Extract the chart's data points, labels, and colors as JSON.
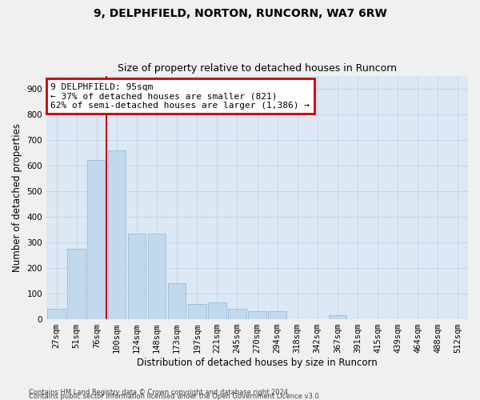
{
  "title_line1": "9, DELPHFIELD, NORTON, RUNCORN, WA7 6RW",
  "title_line2": "Size of property relative to detached houses in Runcorn",
  "xlabel": "Distribution of detached houses by size in Runcorn",
  "ylabel": "Number of detached properties",
  "footer_line1": "Contains HM Land Registry data © Crown copyright and database right 2024.",
  "footer_line2": "Contains public sector information licensed under the Open Government Licence v3.0.",
  "categories": [
    "27sqm",
    "51sqm",
    "76sqm",
    "100sqm",
    "124sqm",
    "148sqm",
    "173sqm",
    "197sqm",
    "221sqm",
    "245sqm",
    "270sqm",
    "294sqm",
    "318sqm",
    "342sqm",
    "367sqm",
    "391sqm",
    "415sqm",
    "439sqm",
    "464sqm",
    "488sqm",
    "512sqm"
  ],
  "values": [
    40,
    275,
    620,
    660,
    335,
    335,
    140,
    60,
    65,
    40,
    30,
    30,
    0,
    0,
    15,
    0,
    0,
    0,
    0,
    0,
    0
  ],
  "bar_color": "#c2d8ed",
  "bar_edge_color": "#8ab4d4",
  "vline_x": 2.5,
  "vline_color": "#cc0000",
  "annotation_line1": "9 DELPHFIELD: 95sqm",
  "annotation_line2": "← 37% of detached houses are smaller (821)",
  "annotation_line3": "62% of semi-detached houses are larger (1,386) →",
  "annotation_box_color": "#ffffff",
  "annotation_box_edge": "#cc0000",
  "ylim": [
    0,
    950
  ],
  "yticks": [
    0,
    100,
    200,
    300,
    400,
    500,
    600,
    700,
    800,
    900
  ],
  "grid_color": "#c8d4e4",
  "bg_color": "#dce8f4",
  "title_fontsize": 10,
  "subtitle_fontsize": 9,
  "axis_label_fontsize": 8.5,
  "tick_fontsize": 7.5,
  "footer_fontsize": 6.0
}
